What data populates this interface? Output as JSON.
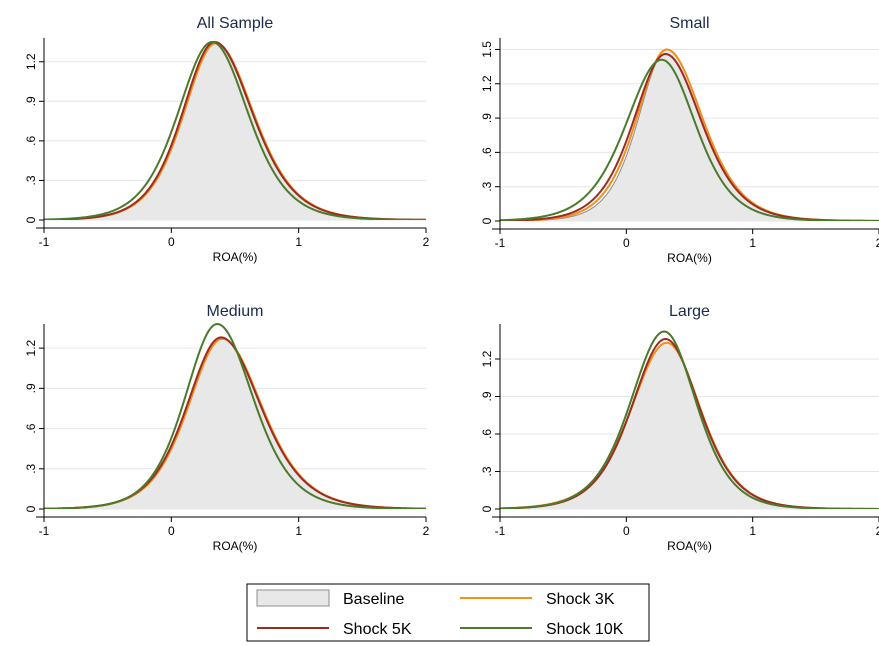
{
  "chart_data": [
    {
      "type": "area",
      "title": "All Sample",
      "xlabel": "ROA(%)",
      "ylabel": "",
      "xlim": [
        -1,
        2
      ],
      "ylim": [
        0,
        1.38
      ],
      "xticks": [
        -1,
        0,
        1,
        2
      ],
      "xticklabels": [
        "-1",
        "0",
        "1",
        "2"
      ],
      "yticks": [
        0,
        0.3,
        0.6,
        0.9,
        1.2
      ],
      "yticklabels": [
        "0",
        ".3",
        ".6",
        ".9",
        "1.2"
      ],
      "grid": "horizontal",
      "series": [
        {
          "name": "Baseline",
          "mode": 0.34,
          "peak": 1.34,
          "left_scale": 0.17,
          "right_scale": 0.2
        },
        {
          "name": "Shock 3K",
          "mode": 0.35,
          "peak": 1.34,
          "left_scale": 0.17,
          "right_scale": 0.2
        },
        {
          "name": "Shock 5K",
          "mode": 0.34,
          "peak": 1.35,
          "left_scale": 0.17,
          "right_scale": 0.2
        },
        {
          "name": "Shock 10K",
          "mode": 0.32,
          "peak": 1.35,
          "left_scale": 0.18,
          "right_scale": 0.19
        }
      ]
    },
    {
      "type": "area",
      "title": "Small",
      "xlabel": "ROA(%)",
      "ylabel": "",
      "xlim": [
        -1,
        2
      ],
      "ylim": [
        0,
        1.6
      ],
      "xticks": [
        -1,
        0,
        1,
        2
      ],
      "xticklabels": [
        "-1",
        "0",
        "1",
        "2"
      ],
      "yticks": [
        0,
        0.3,
        0.6,
        0.9,
        1.2,
        1.5
      ],
      "yticklabels": [
        "0",
        ".3",
        ".6",
        ".9",
        "1.2",
        "1.5"
      ],
      "grid": "horizontal",
      "series": [
        {
          "name": "Baseline",
          "mode": 0.32,
          "peak": 1.5,
          "left_scale": 0.15,
          "right_scale": 0.19
        },
        {
          "name": "Shock 3K",
          "mode": 0.32,
          "peak": 1.5,
          "left_scale": 0.16,
          "right_scale": 0.19
        },
        {
          "name": "Shock 5K",
          "mode": 0.31,
          "peak": 1.46,
          "left_scale": 0.17,
          "right_scale": 0.19
        },
        {
          "name": "Shock 10K",
          "mode": 0.28,
          "peak": 1.41,
          "left_scale": 0.19,
          "right_scale": 0.18
        }
      ]
    },
    {
      "type": "area",
      "title": "Medium",
      "xlabel": "ROA(%)",
      "ylabel": "",
      "xlim": [
        -1,
        2
      ],
      "ylim": [
        0,
        1.38
      ],
      "xticks": [
        -1,
        0,
        1,
        2
      ],
      "xticklabels": [
        "-1",
        "0",
        "1",
        "2"
      ],
      "yticks": [
        0,
        0.3,
        0.6,
        0.9,
        1.2
      ],
      "yticklabels": [
        "0",
        ".3",
        ".6",
        ".9",
        "1.2"
      ],
      "grid": "horizontal",
      "series": [
        {
          "name": "Baseline",
          "mode": 0.4,
          "peak": 1.27,
          "left_scale": 0.18,
          "right_scale": 0.21
        },
        {
          "name": "Shock 3K",
          "mode": 0.4,
          "peak": 1.27,
          "left_scale": 0.18,
          "right_scale": 0.21
        },
        {
          "name": "Shock 5K",
          "mode": 0.39,
          "peak": 1.28,
          "left_scale": 0.18,
          "right_scale": 0.21
        },
        {
          "name": "Shock 10K",
          "mode": 0.36,
          "peak": 1.38,
          "left_scale": 0.17,
          "right_scale": 0.19
        }
      ]
    },
    {
      "type": "area",
      "title": "Large",
      "xlabel": "ROA(%)",
      "ylabel": "",
      "xlim": [
        -1,
        2
      ],
      "ylim": [
        0,
        1.48
      ],
      "xticks": [
        -1,
        0,
        1,
        2
      ],
      "xticklabels": [
        "-1",
        "0",
        "1",
        "2"
      ],
      "yticks": [
        0,
        0.3,
        0.6,
        0.9,
        1.2
      ],
      "yticklabels": [
        "0",
        ".3",
        ".6",
        ".9",
        "1.2"
      ],
      "grid": "horizontal",
      "series": [
        {
          "name": "Baseline",
          "mode": 0.32,
          "peak": 1.33,
          "left_scale": 0.19,
          "right_scale": 0.18
        },
        {
          "name": "Shock 3K",
          "mode": 0.32,
          "peak": 1.33,
          "left_scale": 0.19,
          "right_scale": 0.18
        },
        {
          "name": "Shock 5K",
          "mode": 0.31,
          "peak": 1.36,
          "left_scale": 0.18,
          "right_scale": 0.18
        },
        {
          "name": "Shock 10K",
          "mode": 0.3,
          "peak": 1.42,
          "left_scale": 0.18,
          "right_scale": 0.17
        }
      ]
    }
  ],
  "legend": {
    "placement": "bottom-center",
    "entries": [
      {
        "name": "Baseline",
        "kind": "area",
        "color": "#e8e8e8",
        "edge": "#8c8c8c"
      },
      {
        "name": "Shock 3K",
        "kind": "line",
        "color": "#f28e1c"
      },
      {
        "name": "Shock 5K",
        "kind": "line",
        "color": "#9b2d20"
      },
      {
        "name": "Shock 10K",
        "kind": "line",
        "color": "#4a7a2c"
      }
    ]
  },
  "colors": {
    "baseline_fill": "#e8e8e8",
    "baseline_edge": "#8c8c8c",
    "shock_3k": "#f28e1c",
    "shock_5k": "#9b2d20",
    "shock_10k": "#4a7a2c",
    "grid": "#e6e6e6",
    "title": "#1a2b4c"
  }
}
